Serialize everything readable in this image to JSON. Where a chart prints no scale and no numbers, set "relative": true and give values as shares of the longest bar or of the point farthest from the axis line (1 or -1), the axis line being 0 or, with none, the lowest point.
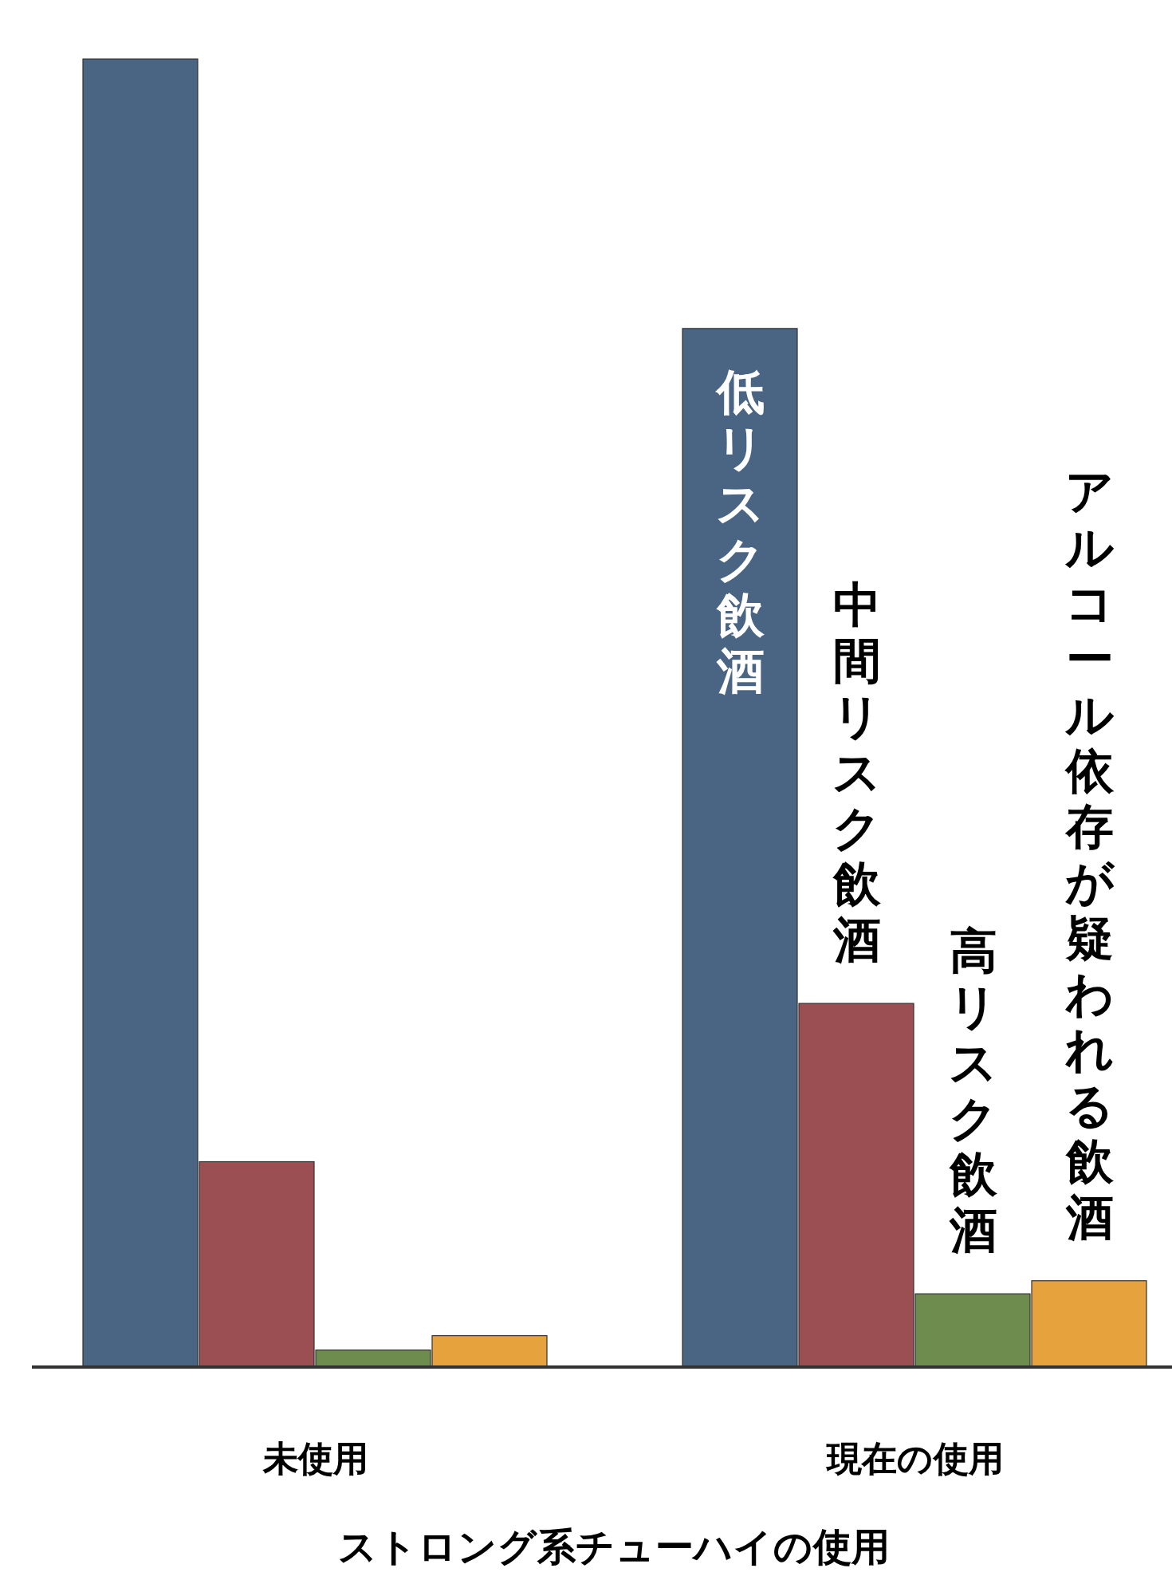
{
  "chart_data": {
    "type": "bar",
    "relative": true,
    "xlabel": "ストロング系チューハイの使用",
    "categories": [
      "未使用",
      "現在の使用"
    ],
    "series": [
      {
        "name": "低リスク飲酒",
        "color": "#4a6584",
        "values": [
          1,
          0.794
        ]
      },
      {
        "name": "中間リスク飲酒",
        "color": "#9c4f52",
        "values": [
          0.157,
          0.278
        ]
      },
      {
        "name": "高リスク飲酒",
        "color": "#6e8c4e",
        "values": [
          0.013,
          0.056
        ]
      },
      {
        "name": "アルコール依存が疑われる飲酒",
        "color": "#e6a23c",
        "values": [
          0.024,
          0.066
        ]
      }
    ]
  }
}
